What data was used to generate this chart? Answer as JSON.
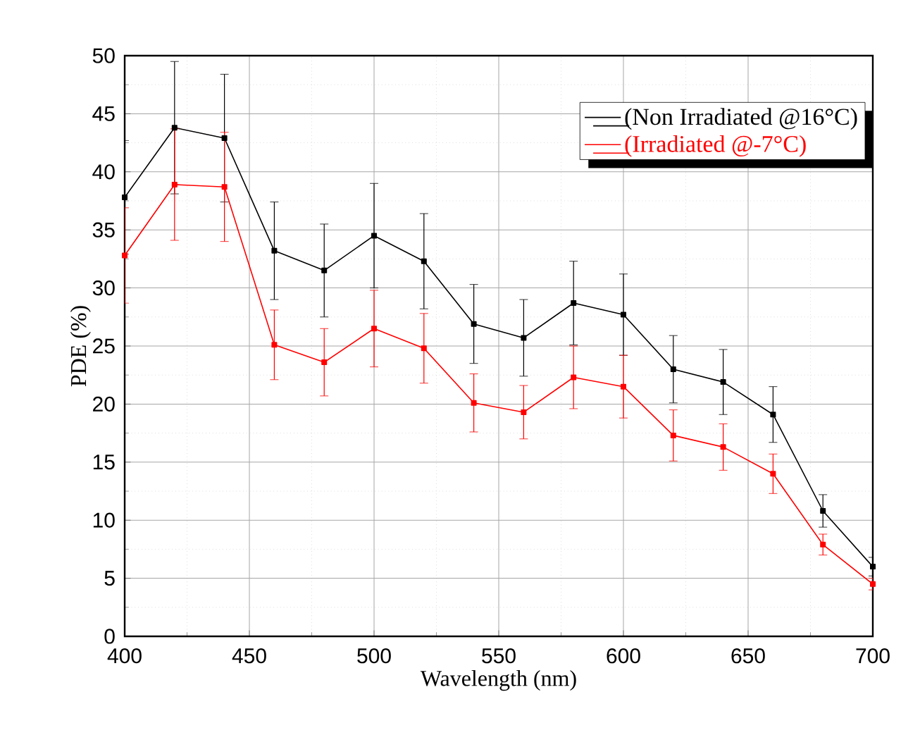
{
  "chart_data": {
    "type": "line",
    "xlabel": "Wavelength (nm)",
    "ylabel": "PDE (%)",
    "x": [
      400,
      420,
      440,
      460,
      480,
      500,
      520,
      540,
      560,
      580,
      600,
      620,
      640,
      660,
      680,
      700
    ],
    "series": [
      {
        "name": "(Non Irradiated @16°C)",
        "color": "#000000",
        "values": [
          37.8,
          43.8,
          42.9,
          33.2,
          31.5,
          34.5,
          32.3,
          26.9,
          25.7,
          28.7,
          27.7,
          23.0,
          21.9,
          19.1,
          10.8,
          6.0
        ],
        "errors": [
          4.9,
          5.7,
          5.5,
          4.2,
          4.0,
          4.5,
          4.1,
          3.4,
          3.3,
          3.6,
          3.5,
          2.9,
          2.8,
          2.4,
          1.4,
          0.8
        ]
      },
      {
        "name": "(Irradiated @-7°C)",
        "color": "#ff0000",
        "values": [
          32.8,
          38.9,
          38.7,
          25.1,
          23.6,
          26.5,
          24.8,
          20.1,
          19.3,
          22.3,
          21.5,
          17.3,
          16.3,
          14.0,
          7.9,
          4.5
        ],
        "errors": [
          4.1,
          4.8,
          4.7,
          3.0,
          2.9,
          3.3,
          3.0,
          2.5,
          2.3,
          2.7,
          2.7,
          2.2,
          2.0,
          1.7,
          0.9,
          0.5
        ]
      }
    ],
    "xlim": [
      400,
      700
    ],
    "ylim": [
      0,
      50
    ],
    "xticks": [
      400,
      450,
      500,
      550,
      600,
      650,
      700
    ],
    "yticks": [
      0,
      5,
      10,
      15,
      20,
      25,
      30,
      35,
      40,
      45,
      50
    ],
    "marker": "square",
    "line_style": "solid",
    "grid": true,
    "legend": "top right"
  }
}
